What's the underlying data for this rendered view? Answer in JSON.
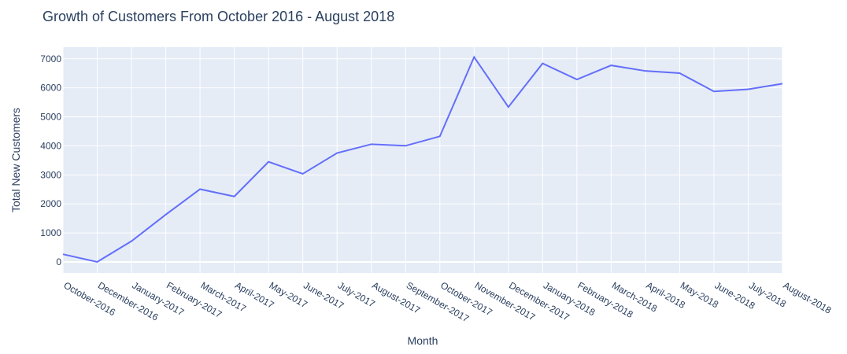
{
  "chart_data": {
    "type": "line",
    "title": "Growth of Customers From October 2016 - August 2018",
    "xlabel": "Month",
    "ylabel": "Total New Customers",
    "categories": [
      "October-2016",
      "December-2016",
      "January-2017",
      "February-2017",
      "March-2017",
      "April-2017",
      "May-2017",
      "June-2017",
      "July-2017",
      "August-2017",
      "September-2017",
      "October-2017",
      "November-2017",
      "December-2017",
      "January-2018",
      "February-2018",
      "March-2018",
      "April-2018",
      "May-2018",
      "June-2018",
      "July-2018",
      "August-2018"
    ],
    "values": [
      265,
      1,
      717,
      1630,
      2508,
      2256,
      3451,
      3037,
      3752,
      4057,
      4004,
      4328,
      7060,
      5338,
      6842,
      6288,
      6774,
      6582,
      6506,
      5875,
      5949,
      6144
    ],
    "ylim": [
      -380,
      7400
    ],
    "yticks": [
      0,
      1000,
      2000,
      3000,
      4000,
      5000,
      6000,
      7000
    ],
    "grid": true,
    "colors": {
      "line": "#636efa",
      "plot_bg": "#e5ecf6",
      "grid": "#ffffff"
    }
  }
}
